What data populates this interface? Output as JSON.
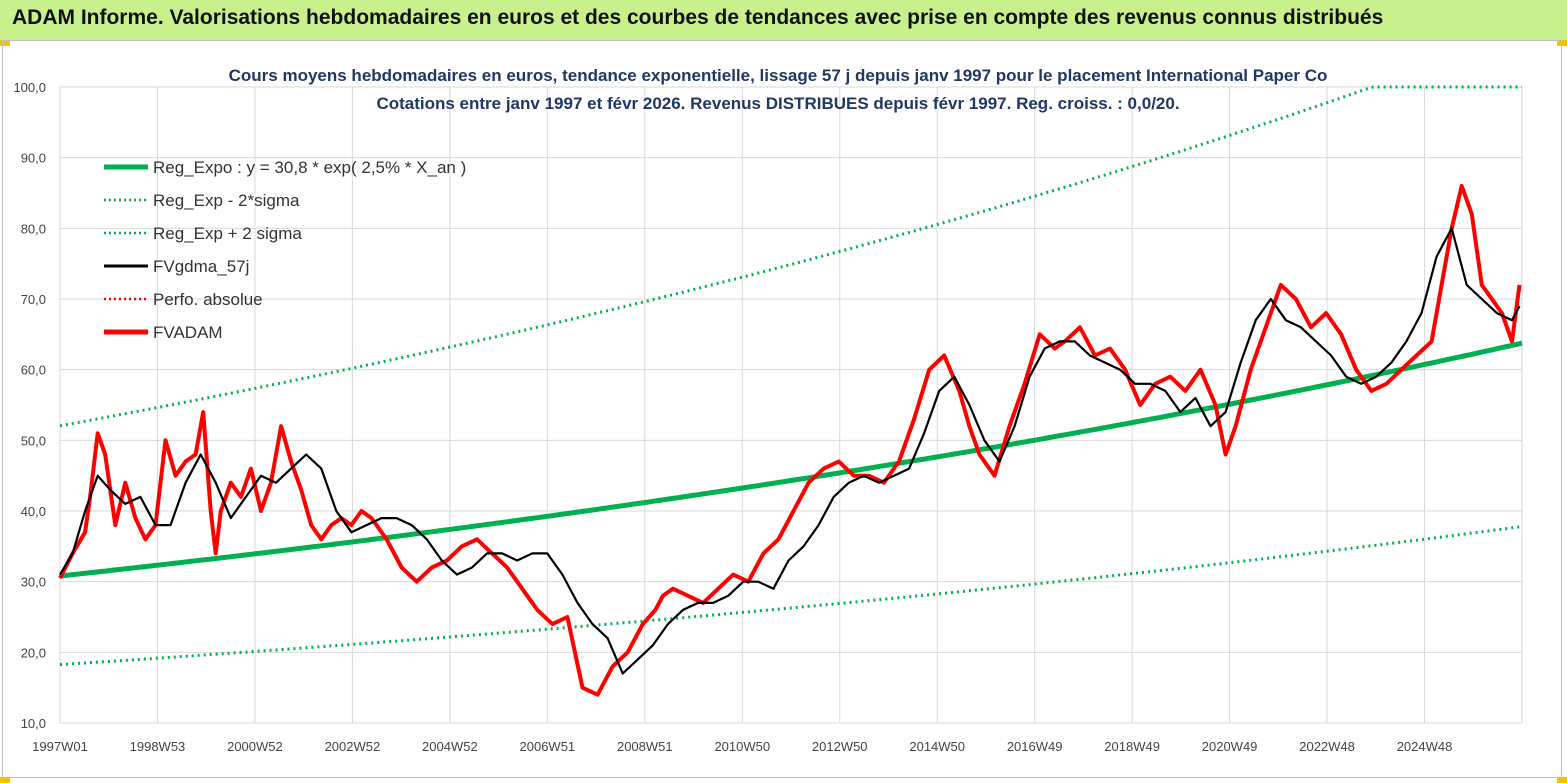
{
  "header": {
    "title": "ADAM Informe. Valorisations hebdomadaires en euros et des courbes de tendances avec prise en compte des revenus connus distribués"
  },
  "colors": {
    "header_bg": "#c8f08c",
    "trend": "#00b050",
    "price": "#ff0000",
    "smooth": "#000000",
    "grid": "#d9d9d9"
  },
  "chart_data": {
    "type": "line",
    "title_line1": "Cours moyens hebdomadaires en euros, tendance exponentielle, lissage 57 j depuis janv 1997 pour le placement International Paper Co",
    "title_line2": "Cotations entre janv 1997 et févr 2026. Revenus DISTRIBUES depuis févr 1997. Reg. croiss. : 0,0/20.",
    "ylim": [
      10,
      100
    ],
    "y_ticks": [
      "10,0",
      "20,0",
      "30,0",
      "40,0",
      "50,0",
      "60,0",
      "70,0",
      "80,0",
      "90,0",
      "100,0"
    ],
    "x_tick_labels": [
      "1997W01",
      "1998W53",
      "2000W52",
      "2002W52",
      "2004W52",
      "2006W51",
      "2008W51",
      "2010W50",
      "2012W50",
      "2014W50",
      "2016W49",
      "2018W49",
      "2020W49",
      "2022W48",
      "2024W48"
    ],
    "x_range_years": [
      1997.0,
      2026.1
    ],
    "legend": [
      {
        "label": "Reg_Expo : y = 30,8 * exp( 2,5% *  X_an )",
        "style": "solid-thick",
        "color": "#00b050"
      },
      {
        "label": "Reg_Exp - 2*sigma",
        "style": "dotted",
        "color": "#00b050"
      },
      {
        "label": "Reg_Exp + 2 sigma",
        "style": "dotted",
        "color": "#00b050"
      },
      {
        "label": "FVgdma_57j",
        "style": "solid",
        "color": "#000000"
      },
      {
        "label": "Perfo. absolue",
        "style": "dotted",
        "color": "#ff0000"
      },
      {
        "label": "FVADAM",
        "style": "solid-thick",
        "color": "#ff0000"
      }
    ],
    "regression": {
      "a": 30.8,
      "rate": 0.025,
      "lower_factor": 0.593,
      "upper_factor": 1.69,
      "upper_cap": 100
    },
    "series": [
      {
        "name": "FVADAM",
        "x": [
          1997.0,
          1997.25,
          1997.5,
          1997.6,
          1997.75,
          1997.9,
          1998.1,
          1998.3,
          1998.5,
          1998.7,
          1998.9,
          1999.1,
          1999.3,
          1999.5,
          1999.7,
          1999.85,
          2000.0,
          2000.1,
          2000.2,
          2000.4,
          2000.6,
          2000.8,
          2001.0,
          2001.2,
          2001.4,
          2001.6,
          2001.8,
          2002.0,
          2002.2,
          2002.4,
          2002.6,
          2002.8,
          2003.0,
          2003.2,
          2003.5,
          2003.8,
          2004.1,
          2004.4,
          2004.7,
          2005.0,
          2005.3,
          2005.6,
          2005.9,
          2006.2,
          2006.5,
          2006.8,
          2007.1,
          2007.4,
          2007.7,
          2008.0,
          2008.3,
          2008.6,
          2008.85,
          2009.0,
          2009.2,
          2009.5,
          2009.8,
          2010.1,
          2010.4,
          2010.7,
          2011.0,
          2011.3,
          2011.6,
          2011.9,
          2012.2,
          2012.5,
          2012.8,
          2013.1,
          2013.4,
          2013.7,
          2014.0,
          2014.3,
          2014.6,
          2014.9,
          2015.1,
          2015.3,
          2015.6,
          2015.9,
          2016.2,
          2016.5,
          2016.8,
          2017.0,
          2017.3,
          2017.6,
          2017.9,
          2018.2,
          2018.5,
          2018.8,
          2019.1,
          2019.4,
          2019.7,
          2020.0,
          2020.2,
          2020.4,
          2020.7,
          2021.0,
          2021.3,
          2021.6,
          2021.9,
          2022.2,
          2022.5,
          2022.8,
          2023.1,
          2023.4,
          2023.7,
          2024.0,
          2024.3,
          2024.5,
          2024.7,
          2024.9,
          2025.1,
          2025.3,
          2025.5,
          2025.7,
          2025.9,
          2026.05
        ],
        "values": [
          30.5,
          34,
          37,
          42,
          51,
          48,
          38,
          44,
          39,
          36,
          38,
          50,
          45,
          47,
          48,
          54,
          40,
          34,
          40,
          44,
          42,
          46,
          40,
          44,
          52,
          47,
          43,
          38,
          36,
          38,
          39,
          38,
          40,
          39,
          36,
          32,
          30,
          32,
          33,
          35,
          36,
          34,
          32,
          29,
          26,
          24,
          25,
          15,
          14,
          18,
          20,
          24,
          26,
          28,
          29,
          28,
          27,
          29,
          31,
          30,
          34,
          36,
          40,
          44,
          46,
          47,
          45,
          45,
          44,
          47,
          53,
          60,
          62,
          57,
          52,
          48,
          45,
          52,
          58,
          65,
          63,
          64,
          66,
          62,
          63,
          60,
          55,
          58,
          59,
          57,
          60,
          55,
          48,
          52,
          60,
          66,
          72,
          70,
          66,
          68,
          65,
          60,
          57,
          58,
          60,
          62,
          64,
          72,
          80,
          86,
          82,
          72,
          70,
          68,
          64,
          72
        ]
      },
      {
        "name": "FVgdma_57j",
        "x": [
          1997.0,
          1997.25,
          1997.5,
          1997.75,
          1998.0,
          1998.3,
          1998.6,
          1998.9,
          1999.2,
          1999.5,
          1999.8,
          2000.1,
          2000.4,
          2000.7,
          2001.0,
          2001.3,
          2001.6,
          2001.9,
          2002.2,
          2002.5,
          2002.8,
          2003.1,
          2003.4,
          2003.7,
          2004.0,
          2004.3,
          2004.6,
          2004.9,
          2005.2,
          2005.5,
          2005.8,
          2006.1,
          2006.4,
          2006.7,
          2007.0,
          2007.3,
          2007.6,
          2007.9,
          2008.2,
          2008.5,
          2008.8,
          2009.1,
          2009.4,
          2009.7,
          2010.0,
          2010.3,
          2010.6,
          2010.9,
          2011.2,
          2011.5,
          2011.8,
          2012.1,
          2012.4,
          2012.7,
          2013.0,
          2013.3,
          2013.6,
          2013.9,
          2014.2,
          2014.5,
          2014.8,
          2015.1,
          2015.4,
          2015.7,
          2016.0,
          2016.3,
          2016.6,
          2016.9,
          2017.2,
          2017.5,
          2017.8,
          2018.1,
          2018.4,
          2018.7,
          2019.0,
          2019.3,
          2019.6,
          2019.9,
          2020.2,
          2020.5,
          2020.8,
          2021.1,
          2021.4,
          2021.7,
          2022.0,
          2022.3,
          2022.6,
          2022.9,
          2023.2,
          2023.5,
          2023.8,
          2024.1,
          2024.4,
          2024.7,
          2025.0,
          2025.3,
          2025.6,
          2025.9,
          2026.05
        ],
        "values": [
          31,
          34,
          40,
          45,
          43,
          41,
          42,
          38,
          38,
          44,
          48,
          44,
          39,
          42,
          45,
          44,
          46,
          48,
          46,
          40,
          37,
          38,
          39,
          39,
          38,
          36,
          33,
          31,
          32,
          34,
          34,
          33,
          34,
          34,
          31,
          27,
          24,
          22,
          17,
          19,
          21,
          24,
          26,
          27,
          27,
          28,
          30,
          30,
          29,
          33,
          35,
          38,
          42,
          44,
          45,
          44,
          45,
          46,
          51,
          57,
          59,
          55,
          50,
          47,
          52,
          59,
          63,
          64,
          64,
          62,
          61,
          60,
          58,
          58,
          57,
          54,
          56,
          52,
          54,
          61,
          67,
          70,
          67,
          66,
          64,
          62,
          59,
          58,
          59,
          61,
          64,
          68,
          76,
          80,
          72,
          70,
          68,
          67,
          69
        ]
      }
    ]
  }
}
